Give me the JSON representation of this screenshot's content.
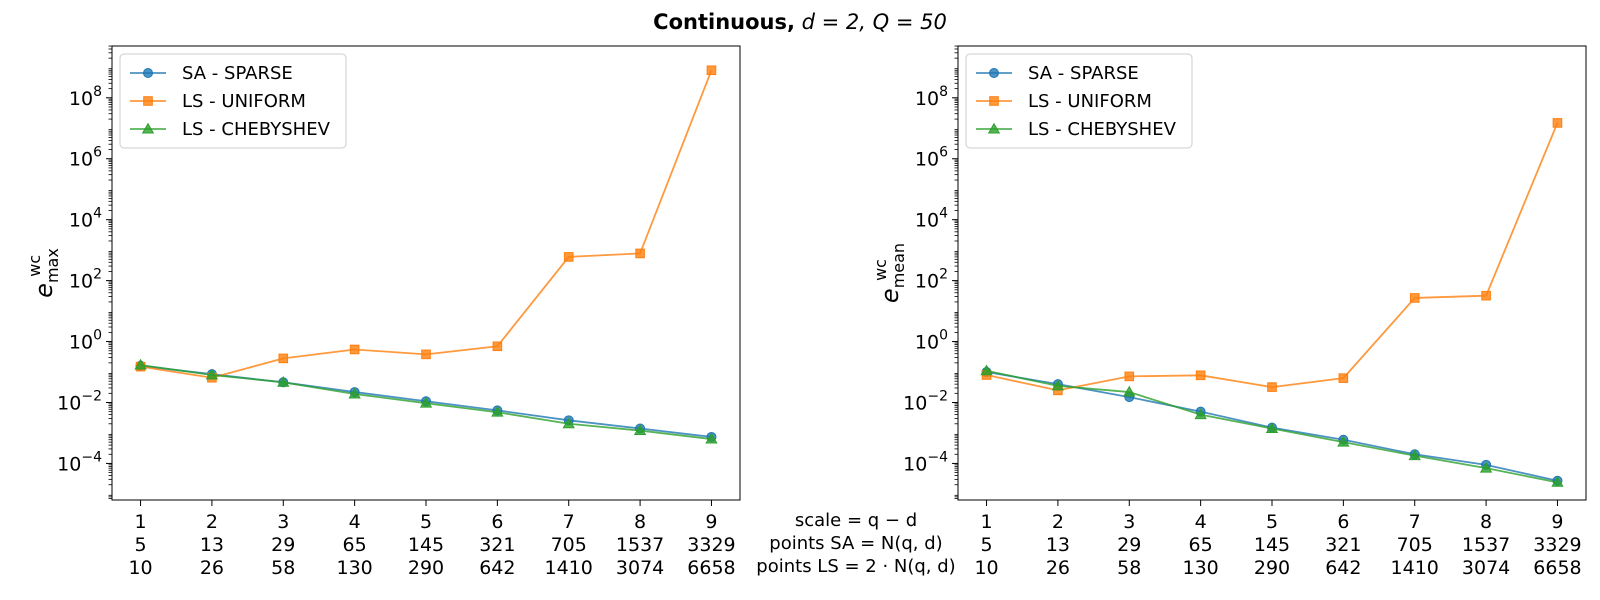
{
  "figure": {
    "title_bold": "Continuous,",
    "title_rest": "d = 2, Q = 50",
    "xlabel_lines": [
      "scale = q − d",
      "points SA = N(q, d)",
      "points LS = 2 · N(q, d)"
    ],
    "x_tick_rows": [
      [
        "1",
        "2",
        "3",
        "4",
        "5",
        "6",
        "7",
        "8",
        "9"
      ],
      [
        "5",
        "13",
        "29",
        "65",
        "145",
        "321",
        "705",
        "1537",
        "3329"
      ],
      [
        "10",
        "26",
        "58",
        "130",
        "290",
        "642",
        "1410",
        "3074",
        "6658"
      ]
    ]
  },
  "colors": {
    "sa": "#1f77b4",
    "uniform": "#ff7f0e",
    "cheb": "#2ca02c"
  },
  "chart_data": [
    {
      "type": "line",
      "yscale": "log",
      "ylabel_main": "e",
      "ylabel_sup": "wc",
      "ylabel_sub": "max",
      "x": [
        1,
        2,
        3,
        4,
        5,
        6,
        7,
        8,
        9
      ],
      "xlim": [
        0.6,
        9.4
      ],
      "ylim_log10": [
        -5.2,
        9.7
      ],
      "y_ticks": [
        {
          "exp": -4,
          "label_base": "10",
          "label_exp": "−4"
        },
        {
          "exp": -2,
          "label_base": "10",
          "label_exp": "−2"
        },
        {
          "exp": 0,
          "label_base": "10",
          "label_exp": "0"
        },
        {
          "exp": 2,
          "label_base": "10",
          "label_exp": "2"
        },
        {
          "exp": 4,
          "label_base": "10",
          "label_exp": "4"
        },
        {
          "exp": 6,
          "label_base": "10",
          "label_exp": "6"
        },
        {
          "exp": 8,
          "label_base": "10",
          "label_exp": "8"
        }
      ],
      "legend_position": "upper-left",
      "series": [
        {
          "name": "SA - SPARSE",
          "color_key": "sa",
          "marker": "circle",
          "values": [
            0.16,
            0.085,
            0.046,
            0.022,
            0.011,
            0.0055,
            0.0026,
            0.0014,
            0.00074
          ]
        },
        {
          "name": "LS - UNIFORM",
          "color_key": "uniform",
          "marker": "square",
          "values": [
            0.15,
            0.065,
            0.28,
            0.55,
            0.38,
            0.7,
            600,
            780,
            800000000
          ]
        },
        {
          "name": "LS - CHEBYSHEV",
          "color_key": "cheb",
          "marker": "triangle",
          "values": [
            0.17,
            0.08,
            0.046,
            0.019,
            0.0095,
            0.0048,
            0.002,
            0.0012,
            0.00063
          ]
        }
      ]
    },
    {
      "type": "line",
      "yscale": "log",
      "ylabel_main": "e",
      "ylabel_sup": "wc",
      "ylabel_sub": "mean",
      "x": [
        1,
        2,
        3,
        4,
        5,
        6,
        7,
        8,
        9
      ],
      "xlim": [
        0.6,
        9.4
      ],
      "ylim_log10": [
        -5.2,
        9.7
      ],
      "y_ticks": [
        {
          "exp": -4,
          "label_base": "10",
          "label_exp": "−4"
        },
        {
          "exp": -2,
          "label_base": "10",
          "label_exp": "−2"
        },
        {
          "exp": 0,
          "label_base": "10",
          "label_exp": "0"
        },
        {
          "exp": 2,
          "label_base": "10",
          "label_exp": "2"
        },
        {
          "exp": 4,
          "label_base": "10",
          "label_exp": "4"
        },
        {
          "exp": 6,
          "label_base": "10",
          "label_exp": "6"
        },
        {
          "exp": 8,
          "label_base": "10",
          "label_exp": "8"
        }
      ],
      "legend_position": "upper-left",
      "series": [
        {
          "name": "SA - SPARSE",
          "color_key": "sa",
          "marker": "circle",
          "values": [
            0.1,
            0.04,
            0.015,
            0.005,
            0.0015,
            0.0006,
            0.0002,
            9e-05,
            2.7e-05
          ]
        },
        {
          "name": "LS - UNIFORM",
          "color_key": "uniform",
          "marker": "square",
          "values": [
            0.08,
            0.025,
            0.072,
            0.078,
            0.032,
            0.063,
            27,
            32,
            15000000
          ]
        },
        {
          "name": "LS - CHEBYSHEV",
          "color_key": "cheb",
          "marker": "triangle",
          "values": [
            0.11,
            0.035,
            0.022,
            0.004,
            0.0014,
            0.0005,
            0.00018,
            7e-05,
            2.4e-05
          ]
        }
      ]
    }
  ]
}
